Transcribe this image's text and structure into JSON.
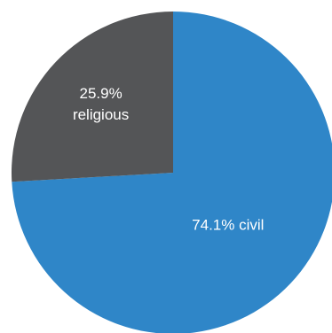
{
  "chart_data": {
    "type": "pie",
    "slices": [
      {
        "name": "civil",
        "value": 74.1,
        "label": "74.1% civil",
        "color": "#2f86c8"
      },
      {
        "name": "religious",
        "value": 25.9,
        "label_lines": [
          "25.9%",
          "religious"
        ],
        "color": "#545557"
      }
    ]
  }
}
